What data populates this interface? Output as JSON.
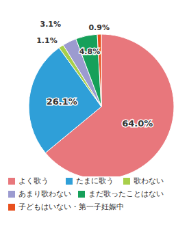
{
  "chart_data": {
    "type": "pie",
    "categories": [
      "よく歌う",
      "たまに歌う",
      "歌わない",
      "あまり歌わない",
      "まだ歌ったことはない",
      "子どもはいない・第一子妊娠中"
    ],
    "values": [
      64.0,
      26.1,
      1.1,
      3.1,
      4.8,
      0.9
    ],
    "value_labels": [
      "64.0%",
      "26.1%",
      "1.1%",
      "3.1%",
      "4.8%",
      "0.9%"
    ],
    "colors": [
      "#e8777c",
      "#2f9fd8",
      "#a8cf4a",
      "#9c9bd0",
      "#16a05a",
      "#e8501e"
    ],
    "data_labels": true
  }
}
